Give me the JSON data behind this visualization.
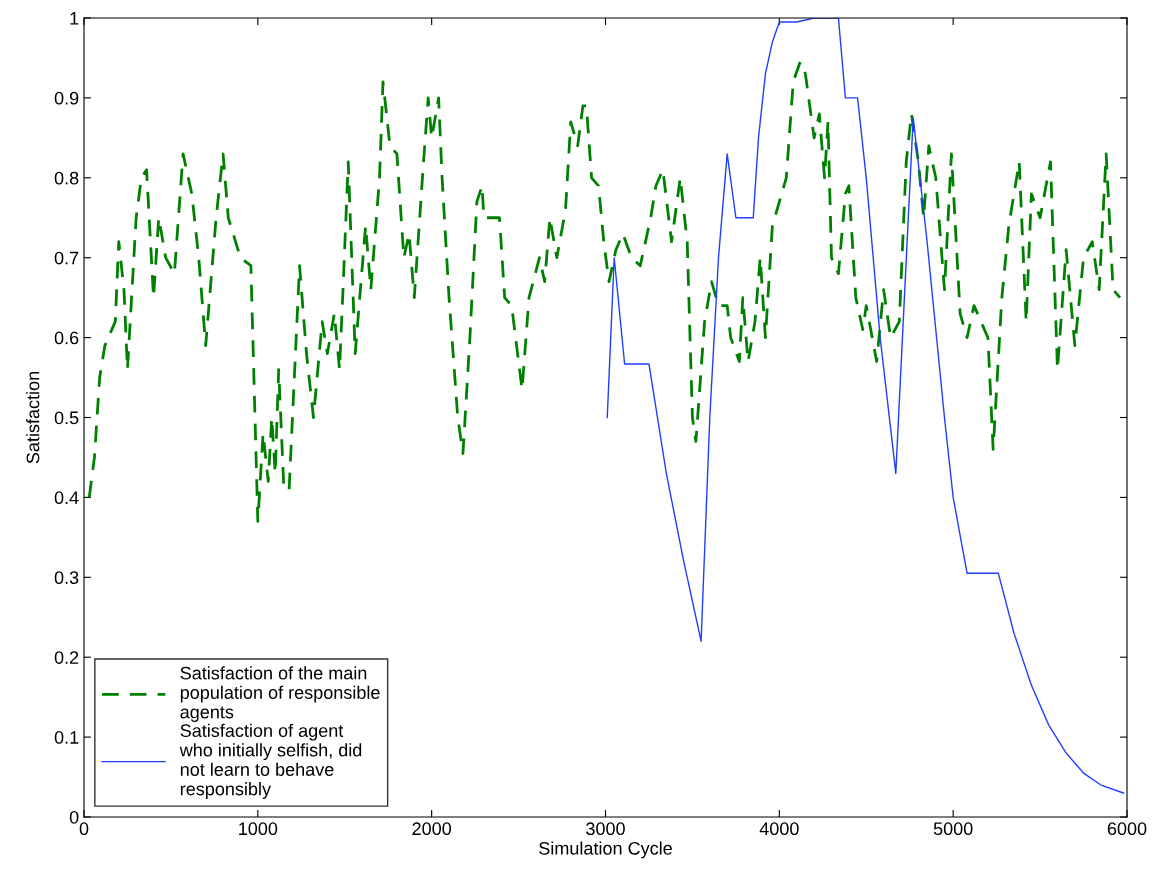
{
  "chart_data": {
    "type": "line",
    "xlabel": "Simulation Cycle",
    "ylabel": "Satisfaction",
    "xlim": [
      0,
      6000
    ],
    "xticks": [
      0,
      1000,
      2000,
      3000,
      4000,
      5000,
      6000
    ],
    "ylim": [
      0,
      1
    ],
    "yticks": [
      0,
      0.1,
      0.2,
      0.3,
      0.4,
      0.5,
      0.6,
      0.7,
      0.8,
      0.9,
      1
    ],
    "grid": false,
    "legend": "bottom left",
    "marker": "none",
    "series": [
      {
        "name": "Satisfaction of the main\npopulation of responsible\nagents",
        "color": "#008000",
        "line_style": "dashed",
        "x": [
          30,
          60,
          90,
          120,
          180,
          200,
          230,
          250,
          300,
          330,
          360,
          400,
          430,
          470,
          520,
          570,
          620,
          660,
          700,
          760,
          800,
          830,
          900,
          960,
          1000,
          1030,
          1060,
          1080,
          1100,
          1120,
          1150,
          1180,
          1210,
          1240,
          1280,
          1320,
          1370,
          1400,
          1440,
          1470,
          1490,
          1520,
          1560,
          1590,
          1620,
          1650,
          1700,
          1720,
          1760,
          1800,
          1840,
          1870,
          1900,
          1950,
          1980,
          2000,
          2040,
          2060,
          2100,
          2150,
          2180,
          2220,
          2260,
          2290,
          2300,
          2390,
          2420,
          2460,
          2520,
          2560,
          2620,
          2650,
          2680,
          2720,
          2770,
          2800,
          2840,
          2870,
          2890,
          2920,
          2960,
          2990,
          3020,
          3060,
          3100,
          3150,
          3200,
          3260,
          3290,
          3330,
          3380,
          3430,
          3470,
          3500,
          3520,
          3570,
          3610,
          3650,
          3700,
          3720,
          3770,
          3790,
          3820,
          3860,
          3890,
          3920,
          3960,
          4000,
          4040,
          4080,
          4120,
          4150,
          4200,
          4230,
          4260,
          4280,
          4300,
          4340,
          4380,
          4400,
          4440,
          4480,
          4500,
          4560,
          4600,
          4640,
          4690,
          4730,
          4760,
          4800,
          4830,
          4860,
          4900,
          4950,
          4990,
          5040,
          5080,
          5120,
          5160,
          5200,
          5230,
          5280,
          5320,
          5380,
          5420,
          5450,
          5500,
          5560,
          5600,
          5650,
          5700,
          5750,
          5800,
          5840,
          5880,
          5920,
          5960
        ],
        "values": [
          0.4,
          0.45,
          0.55,
          0.59,
          0.62,
          0.72,
          0.66,
          0.56,
          0.75,
          0.8,
          0.81,
          0.65,
          0.75,
          0.7,
          0.68,
          0.83,
          0.78,
          0.7,
          0.59,
          0.75,
          0.83,
          0.75,
          0.7,
          0.69,
          0.37,
          0.48,
          0.42,
          0.5,
          0.43,
          0.56,
          0.41,
          0.41,
          0.55,
          0.69,
          0.58,
          0.5,
          0.62,
          0.58,
          0.63,
          0.56,
          0.66,
          0.82,
          0.58,
          0.66,
          0.74,
          0.66,
          0.8,
          0.92,
          0.84,
          0.83,
          0.7,
          0.73,
          0.65,
          0.81,
          0.9,
          0.85,
          0.9,
          0.8,
          0.65,
          0.5,
          0.455,
          0.6,
          0.77,
          0.79,
          0.75,
          0.75,
          0.65,
          0.64,
          0.535,
          0.65,
          0.7,
          0.67,
          0.75,
          0.7,
          0.76,
          0.87,
          0.84,
          0.89,
          0.89,
          0.8,
          0.79,
          0.72,
          0.67,
          0.71,
          0.73,
          0.7,
          0.69,
          0.75,
          0.79,
          0.81,
          0.72,
          0.8,
          0.72,
          0.5,
          0.47,
          0.62,
          0.67,
          0.64,
          0.64,
          0.6,
          0.57,
          0.65,
          0.57,
          0.62,
          0.7,
          0.6,
          0.74,
          0.77,
          0.8,
          0.92,
          0.945,
          0.93,
          0.85,
          0.88,
          0.8,
          0.87,
          0.7,
          0.68,
          0.78,
          0.79,
          0.65,
          0.61,
          0.64,
          0.57,
          0.66,
          0.6,
          0.62,
          0.82,
          0.88,
          0.82,
          0.75,
          0.84,
          0.8,
          0.66,
          0.83,
          0.63,
          0.6,
          0.64,
          0.62,
          0.6,
          0.46,
          0.65,
          0.74,
          0.82,
          0.62,
          0.78,
          0.75,
          0.82,
          0.56,
          0.71,
          0.59,
          0.7,
          0.72,
          0.66,
          0.83,
          0.66,
          0.65
        ]
      },
      {
        "name": "Satisfaction of agent\nwho initially selfish, did\nnot learn to behave\nresponsibly",
        "color": "#1f3fff",
        "line_style": "solid",
        "x": [
          3010,
          3050,
          3110,
          3250,
          3350,
          3450,
          3550,
          3600,
          3650,
          3700,
          3750,
          3850,
          3880,
          3920,
          3960,
          4000,
          4100,
          4200,
          4340,
          4380,
          4450,
          4500,
          4580,
          4670,
          4770,
          4850,
          4950,
          5000,
          5080,
          5260,
          5350,
          5450,
          5550,
          5650,
          5750,
          5850,
          5980
        ],
        "values": [
          0.5,
          0.7,
          0.567,
          0.567,
          0.43,
          0.32,
          0.22,
          0.5,
          0.7,
          0.83,
          0.75,
          0.75,
          0.85,
          0.93,
          0.97,
          0.995,
          0.995,
          1.0,
          1.0,
          0.9,
          0.9,
          0.8,
          0.6,
          0.43,
          0.875,
          0.72,
          0.5,
          0.4,
          0.305,
          0.305,
          0.23,
          0.165,
          0.115,
          0.08,
          0.055,
          0.04,
          0.03
        ]
      }
    ]
  }
}
